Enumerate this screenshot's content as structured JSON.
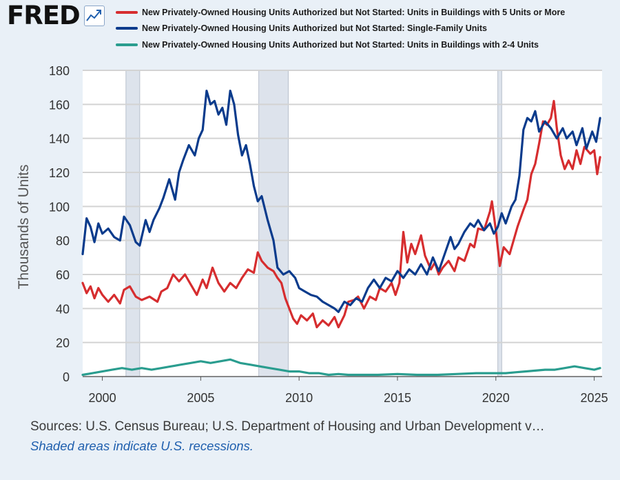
{
  "brand": {
    "logo_text": "FRED"
  },
  "colors": {
    "red": "#d62d2f",
    "blue": "#0a3b8c",
    "teal": "#2a9d8f",
    "recession": "#dde3ec",
    "plot_bg": "#ffffff",
    "grid": "#d3d3d3"
  },
  "footer": {
    "sources": "Sources: U.S. Census Bureau; U.S. Department of Housing and Urban Development v…",
    "recession_note": "Shaded areas indicate U.S. recessions."
  },
  "chart_data": {
    "type": "line",
    "title": "",
    "xlabel": "",
    "ylabel": "Thousands of Units",
    "xlim": [
      1999.0,
      2025.4
    ],
    "ylim": [
      0,
      180
    ],
    "yticks": [
      0,
      20,
      40,
      60,
      80,
      100,
      120,
      140,
      160,
      180
    ],
    "xticks": [
      2000,
      2005,
      2010,
      2015,
      2020,
      2025
    ],
    "grid": true,
    "legend_position": "top",
    "recessions": [
      [
        2001.2,
        2001.9
      ],
      [
        2007.95,
        2009.45
      ],
      [
        2020.1,
        2020.3
      ]
    ],
    "series": [
      {
        "name": "New Privately-Owned Housing Units Authorized but Not Started: Units in Buildings with 5 Units or More",
        "color_key": "red",
        "points": [
          [
            1999.0,
            55
          ],
          [
            1999.2,
            49
          ],
          [
            1999.4,
            53
          ],
          [
            1999.6,
            46
          ],
          [
            1999.8,
            52
          ],
          [
            2000.0,
            48
          ],
          [
            2000.3,
            44
          ],
          [
            2000.6,
            48
          ],
          [
            2000.9,
            43
          ],
          [
            2001.1,
            51
          ],
          [
            2001.4,
            53
          ],
          [
            2001.7,
            47
          ],
          [
            2002.0,
            45
          ],
          [
            2002.4,
            47
          ],
          [
            2002.8,
            44
          ],
          [
            2003.0,
            50
          ],
          [
            2003.3,
            52
          ],
          [
            2003.6,
            60
          ],
          [
            2003.9,
            56
          ],
          [
            2004.2,
            60
          ],
          [
            2004.5,
            54
          ],
          [
            2004.8,
            48
          ],
          [
            2005.1,
            57
          ],
          [
            2005.3,
            52
          ],
          [
            2005.6,
            64
          ],
          [
            2005.9,
            55
          ],
          [
            2006.2,
            50
          ],
          [
            2006.5,
            55
          ],
          [
            2006.8,
            52
          ],
          [
            2007.1,
            58
          ],
          [
            2007.4,
            63
          ],
          [
            2007.7,
            61
          ],
          [
            2007.9,
            73
          ],
          [
            2008.1,
            68
          ],
          [
            2008.4,
            64
          ],
          [
            2008.7,
            62
          ],
          [
            2008.9,
            58
          ],
          [
            2009.1,
            55
          ],
          [
            2009.3,
            46
          ],
          [
            2009.5,
            40
          ],
          [
            2009.7,
            34
          ],
          [
            2009.9,
            31
          ],
          [
            2010.1,
            36
          ],
          [
            2010.4,
            33
          ],
          [
            2010.7,
            37
          ],
          [
            2010.9,
            29
          ],
          [
            2011.2,
            33
          ],
          [
            2011.5,
            30
          ],
          [
            2011.8,
            35
          ],
          [
            2012.0,
            29
          ],
          [
            2012.3,
            36
          ],
          [
            2012.5,
            44
          ],
          [
            2012.8,
            45
          ],
          [
            2013.0,
            47
          ],
          [
            2013.3,
            40
          ],
          [
            2013.6,
            47
          ],
          [
            2013.9,
            45
          ],
          [
            2014.1,
            52
          ],
          [
            2014.4,
            50
          ],
          [
            2014.7,
            55
          ],
          [
            2014.9,
            48
          ],
          [
            2015.1,
            55
          ],
          [
            2015.3,
            85
          ],
          [
            2015.5,
            67
          ],
          [
            2015.7,
            78
          ],
          [
            2015.9,
            72
          ],
          [
            2016.2,
            83
          ],
          [
            2016.4,
            71
          ],
          [
            2016.7,
            63
          ],
          [
            2016.9,
            67
          ],
          [
            2017.1,
            60
          ],
          [
            2017.3,
            64
          ],
          [
            2017.6,
            68
          ],
          [
            2017.9,
            62
          ],
          [
            2018.1,
            70
          ],
          [
            2018.4,
            68
          ],
          [
            2018.7,
            78
          ],
          [
            2018.9,
            76
          ],
          [
            2019.1,
            87
          ],
          [
            2019.4,
            86
          ],
          [
            2019.7,
            97
          ],
          [
            2019.8,
            103
          ],
          [
            2020.0,
            86
          ],
          [
            2020.2,
            65
          ],
          [
            2020.4,
            76
          ],
          [
            2020.7,
            72
          ],
          [
            2020.9,
            80
          ],
          [
            2021.1,
            88
          ],
          [
            2021.4,
            98
          ],
          [
            2021.6,
            104
          ],
          [
            2021.8,
            119
          ],
          [
            2022.0,
            125
          ],
          [
            2022.2,
            137
          ],
          [
            2022.4,
            150
          ],
          [
            2022.6,
            148
          ],
          [
            2022.8,
            152
          ],
          [
            2022.95,
            162
          ],
          [
            2023.1,
            146
          ],
          [
            2023.3,
            130
          ],
          [
            2023.5,
            122
          ],
          [
            2023.7,
            127
          ],
          [
            2023.9,
            122
          ],
          [
            2024.1,
            133
          ],
          [
            2024.3,
            125
          ],
          [
            2024.5,
            135
          ],
          [
            2024.8,
            131
          ],
          [
            2025.0,
            133
          ],
          [
            2025.15,
            119
          ],
          [
            2025.3,
            129
          ]
        ]
      },
      {
        "name": "New Privately-Owned Housing Units Authorized but Not Started: Single-Family Units",
        "color_key": "blue",
        "points": [
          [
            1999.0,
            72
          ],
          [
            1999.2,
            93
          ],
          [
            1999.4,
            88
          ],
          [
            1999.6,
            79
          ],
          [
            1999.8,
            90
          ],
          [
            2000.0,
            84
          ],
          [
            2000.3,
            87
          ],
          [
            2000.6,
            82
          ],
          [
            2000.9,
            80
          ],
          [
            2001.1,
            94
          ],
          [
            2001.4,
            89
          ],
          [
            2001.7,
            79
          ],
          [
            2001.9,
            77
          ],
          [
            2002.2,
            92
          ],
          [
            2002.4,
            85
          ],
          [
            2002.6,
            92
          ],
          [
            2002.9,
            99
          ],
          [
            2003.1,
            105
          ],
          [
            2003.4,
            116
          ],
          [
            2003.7,
            104
          ],
          [
            2003.9,
            120
          ],
          [
            2004.1,
            127
          ],
          [
            2004.4,
            136
          ],
          [
            2004.7,
            130
          ],
          [
            2004.9,
            140
          ],
          [
            2005.1,
            145
          ],
          [
            2005.3,
            168
          ],
          [
            2005.5,
            160
          ],
          [
            2005.7,
            162
          ],
          [
            2005.9,
            154
          ],
          [
            2006.1,
            158
          ],
          [
            2006.3,
            148
          ],
          [
            2006.5,
            168
          ],
          [
            2006.7,
            160
          ],
          [
            2006.9,
            142
          ],
          [
            2007.1,
            130
          ],
          [
            2007.3,
            136
          ],
          [
            2007.5,
            125
          ],
          [
            2007.7,
            112
          ],
          [
            2007.9,
            103
          ],
          [
            2008.1,
            106
          ],
          [
            2008.4,
            92
          ],
          [
            2008.7,
            80
          ],
          [
            2008.9,
            64
          ],
          [
            2009.2,
            60
          ],
          [
            2009.5,
            62
          ],
          [
            2009.8,
            58
          ],
          [
            2010.0,
            52
          ],
          [
            2010.3,
            50
          ],
          [
            2010.6,
            48
          ],
          [
            2010.9,
            47
          ],
          [
            2011.2,
            44
          ],
          [
            2011.5,
            42
          ],
          [
            2011.8,
            40
          ],
          [
            2012.0,
            38
          ],
          [
            2012.3,
            44
          ],
          [
            2012.6,
            42
          ],
          [
            2012.9,
            46
          ],
          [
            2013.2,
            44
          ],
          [
            2013.5,
            52
          ],
          [
            2013.8,
            57
          ],
          [
            2014.1,
            52
          ],
          [
            2014.4,
            58
          ],
          [
            2014.7,
            56
          ],
          [
            2015.0,
            62
          ],
          [
            2015.3,
            58
          ],
          [
            2015.6,
            63
          ],
          [
            2015.9,
            60
          ],
          [
            2016.2,
            66
          ],
          [
            2016.5,
            60
          ],
          [
            2016.8,
            70
          ],
          [
            2017.1,
            62
          ],
          [
            2017.4,
            72
          ],
          [
            2017.7,
            82
          ],
          [
            2017.9,
            75
          ],
          [
            2018.1,
            78
          ],
          [
            2018.4,
            85
          ],
          [
            2018.7,
            90
          ],
          [
            2018.9,
            88
          ],
          [
            2019.1,
            92
          ],
          [
            2019.4,
            86
          ],
          [
            2019.7,
            90
          ],
          [
            2019.9,
            84
          ],
          [
            2020.1,
            88
          ],
          [
            2020.3,
            96
          ],
          [
            2020.5,
            90
          ],
          [
            2020.8,
            100
          ],
          [
            2021.0,
            104
          ],
          [
            2021.2,
            118
          ],
          [
            2021.4,
            145
          ],
          [
            2021.6,
            152
          ],
          [
            2021.8,
            150
          ],
          [
            2022.0,
            156
          ],
          [
            2022.2,
            144
          ],
          [
            2022.5,
            150
          ],
          [
            2022.8,
            146
          ],
          [
            2023.1,
            140
          ],
          [
            2023.4,
            146
          ],
          [
            2023.6,
            140
          ],
          [
            2023.9,
            144
          ],
          [
            2024.1,
            136
          ],
          [
            2024.4,
            146
          ],
          [
            2024.6,
            134
          ],
          [
            2024.9,
            144
          ],
          [
            2025.1,
            138
          ],
          [
            2025.3,
            152
          ]
        ]
      },
      {
        "name": "New Privately-Owned Housing Units Authorized but Not Started: Units in Buildings with 2-4 Units",
        "color_key": "teal",
        "points": [
          [
            1999.0,
            1
          ],
          [
            1999.5,
            2
          ],
          [
            2000.0,
            3
          ],
          [
            2000.5,
            4
          ],
          [
            2001.0,
            5
          ],
          [
            2001.5,
            4
          ],
          [
            2002.0,
            5
          ],
          [
            2002.5,
            4
          ],
          [
            2003.0,
            5
          ],
          [
            2003.5,
            6
          ],
          [
            2004.0,
            7
          ],
          [
            2004.5,
            8
          ],
          [
            2005.0,
            9
          ],
          [
            2005.5,
            8
          ],
          [
            2006.0,
            9
          ],
          [
            2006.5,
            10
          ],
          [
            2007.0,
            8
          ],
          [
            2007.5,
            7
          ],
          [
            2008.0,
            6
          ],
          [
            2008.5,
            5
          ],
          [
            2009.0,
            4
          ],
          [
            2009.5,
            3
          ],
          [
            2010.0,
            3
          ],
          [
            2010.5,
            2
          ],
          [
            2011.0,
            2
          ],
          [
            2011.5,
            1
          ],
          [
            2012.0,
            1.5
          ],
          [
            2012.5,
            1
          ],
          [
            2013.0,
            1
          ],
          [
            2014.0,
            1
          ],
          [
            2015.0,
            1.5
          ],
          [
            2016.0,
            1
          ],
          [
            2017.0,
            1
          ],
          [
            2018.0,
            1.5
          ],
          [
            2019.0,
            2
          ],
          [
            2020.0,
            2
          ],
          [
            2020.5,
            2
          ],
          [
            2021.0,
            2.5
          ],
          [
            2021.5,
            3
          ],
          [
            2022.0,
            3.5
          ],
          [
            2022.5,
            4
          ],
          [
            2023.0,
            4
          ],
          [
            2023.5,
            5
          ],
          [
            2024.0,
            6
          ],
          [
            2024.5,
            5
          ],
          [
            2025.0,
            4
          ],
          [
            2025.3,
            5
          ]
        ]
      }
    ]
  }
}
